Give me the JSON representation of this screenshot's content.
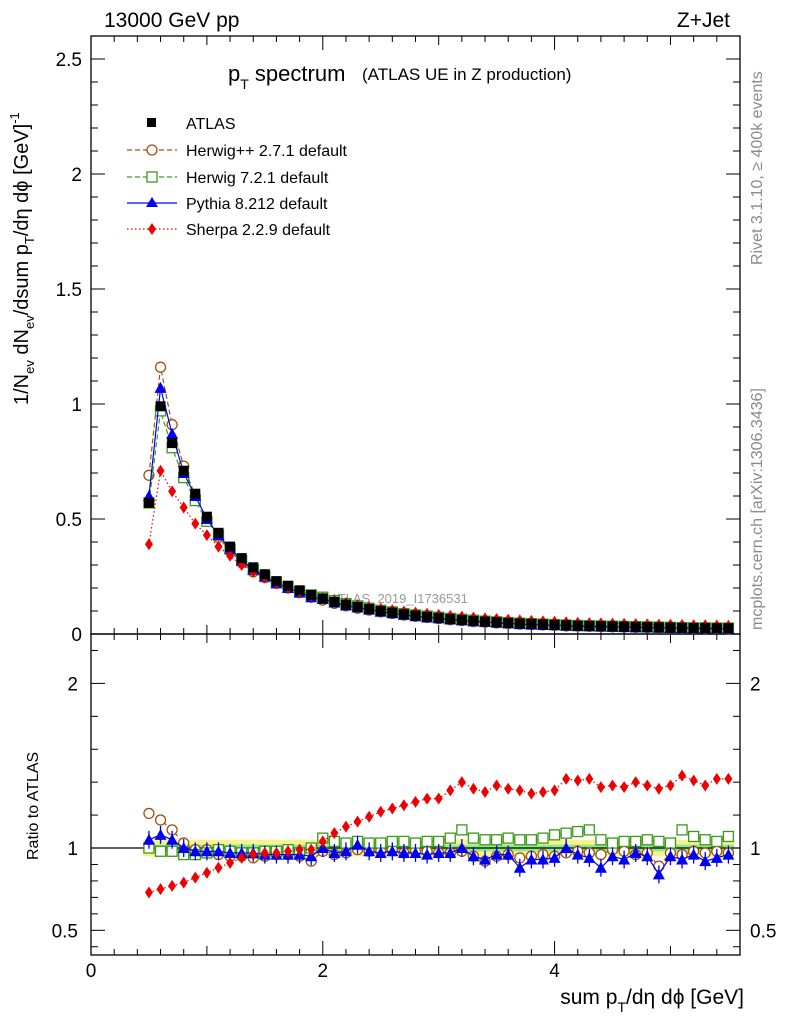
{
  "header": {
    "energy": "13000 GeV pp",
    "process": "Z+Jet"
  },
  "side_labels": {
    "rivet": "Rivet 3.1.10, ≥ 400k events",
    "mcplots": "mcplots.cern.ch [arXiv:1306.3436]"
  },
  "watermark": "ATLAS_2019_I1736531",
  "title": {
    "main_p": "p",
    "main_sub": "T",
    "main_rest": " spectrum",
    "note": "(ATLAS UE in Z production)"
  },
  "ylabel_top": "1/N_ev dN_ev/dsum p_T/dη dϕ [GeV]^-1",
  "ylabel_top_parts": {
    "a": "1/N",
    "a_sub": "ev",
    "b": " dN",
    "b_sub": "ev",
    "c": "/dsum p",
    "c_sub": "T",
    "d": "/dη dϕ  [GeV]",
    "d_sup": "-1"
  },
  "ylabel_ratio": "Ratio to ATLAS",
  "xlabel_parts": {
    "a": "sum p",
    "a_sub": "T",
    "b": "/dη dϕ [GeV]"
  },
  "legend": [
    {
      "label": "ATLAS",
      "color": "#000000",
      "marker": "square-filled",
      "line": "none"
    },
    {
      "label": "Herwig++ 2.7.1 default",
      "color": "#a0520f",
      "marker": "circle-open",
      "line": "dashed"
    },
    {
      "label": "Herwig 7.2.1 default",
      "color": "#3a9a1a",
      "marker": "square-open",
      "line": "dashed"
    },
    {
      "label": "Pythia 8.212 default",
      "color": "#0000ee",
      "marker": "triangle-filled",
      "line": "solid"
    },
    {
      "label": "Sherpa 2.2.9 default",
      "color": "#ee0000",
      "marker": "diamond-filled",
      "line": "dotted"
    }
  ],
  "chart_data": [
    {
      "type": "line",
      "panel": "main",
      "title": "pT spectrum (ATLAS UE in Z production)",
      "xlim": [
        0,
        5.6
      ],
      "ylim": [
        0,
        2.6
      ],
      "x_ticks": [
        0,
        2,
        4
      ],
      "y_ticks": [
        0,
        0.5,
        1,
        1.5,
        2,
        2.5
      ],
      "y_tick_labels": [
        "0",
        "0.5",
        "1",
        "1.5",
        "2",
        "2.5"
      ],
      "x": [
        0.5,
        0.6,
        0.7,
        0.8,
        0.9,
        1.0,
        1.1,
        1.2,
        1.3,
        1.4,
        1.5,
        1.6,
        1.7,
        1.8,
        1.9,
        2.0,
        2.1,
        2.2,
        2.3,
        2.4,
        2.5,
        2.6,
        2.7,
        2.8,
        2.9,
        3.0,
        3.1,
        3.2,
        3.3,
        3.4,
        3.5,
        3.6,
        3.7,
        3.8,
        3.9,
        4.0,
        4.1,
        4.2,
        4.3,
        4.4,
        4.5,
        4.6,
        4.7,
        4.8,
        4.9,
        5.0,
        5.1,
        5.2,
        5.3,
        5.4,
        5.5
      ],
      "series": [
        {
          "name": "ATLAS",
          "values": [
            0.57,
            0.99,
            0.83,
            0.71,
            0.61,
            0.51,
            0.44,
            0.38,
            0.33,
            0.29,
            0.26,
            0.23,
            0.21,
            0.19,
            0.17,
            0.155,
            0.14,
            0.128,
            0.118,
            0.109,
            0.1,
            0.093,
            0.086,
            0.08,
            0.075,
            0.07,
            0.065,
            0.061,
            0.057,
            0.054,
            0.051,
            0.048,
            0.046,
            0.044,
            0.042,
            0.04,
            0.038,
            0.036,
            0.035,
            0.034,
            0.033,
            0.032,
            0.031,
            0.03,
            0.029,
            0.028,
            0.027,
            0.026,
            0.026,
            0.025,
            0.025
          ]
        },
        {
          "name": "Herwig++ 2.7.1 default",
          "values": [
            0.69,
            1.16,
            0.91,
            0.73,
            0.6,
            0.5,
            0.42,
            0.36,
            0.31,
            0.27,
            0.245,
            0.22,
            0.2,
            0.18,
            0.16,
            0.147,
            0.133,
            0.122,
            0.112,
            0.104,
            0.096,
            0.089,
            0.082,
            0.077,
            0.072,
            0.067,
            0.062,
            0.058,
            0.054,
            0.051,
            0.048,
            0.045,
            0.043,
            0.041,
            0.039,
            0.037,
            0.035,
            0.034,
            0.033,
            0.032,
            0.031,
            0.03,
            0.029,
            0.028,
            0.027,
            0.026,
            0.025,
            0.025,
            0.024,
            0.024,
            0.023
          ]
        },
        {
          "name": "Herwig 7.2.1 default",
          "values": [
            0.57,
            0.97,
            0.81,
            0.68,
            0.58,
            0.49,
            0.43,
            0.37,
            0.32,
            0.28,
            0.25,
            0.225,
            0.205,
            0.185,
            0.17,
            0.16,
            0.145,
            0.132,
            0.122,
            0.112,
            0.103,
            0.096,
            0.089,
            0.083,
            0.078,
            0.073,
            0.068,
            0.064,
            0.06,
            0.056,
            0.053,
            0.05,
            0.047,
            0.045,
            0.043,
            0.041,
            0.039,
            0.037,
            0.036,
            0.035,
            0.034,
            0.033,
            0.032,
            0.031,
            0.03,
            0.029,
            0.028,
            0.027,
            0.027,
            0.026,
            0.026
          ]
        },
        {
          "name": "Pythia 8.212 default",
          "values": [
            0.6,
            1.07,
            0.87,
            0.7,
            0.6,
            0.5,
            0.43,
            0.37,
            0.32,
            0.28,
            0.25,
            0.22,
            0.2,
            0.18,
            0.16,
            0.152,
            0.137,
            0.124,
            0.115,
            0.106,
            0.097,
            0.09,
            0.083,
            0.077,
            0.072,
            0.068,
            0.063,
            0.059,
            0.055,
            0.052,
            0.049,
            0.046,
            0.043,
            0.041,
            0.039,
            0.038,
            0.036,
            0.034,
            0.033,
            0.032,
            0.031,
            0.03,
            0.029,
            0.028,
            0.027,
            0.026,
            0.025,
            0.025,
            0.024,
            0.024,
            0.023
          ]
        },
        {
          "name": "Sherpa 2.2.9 default",
          "values": [
            0.39,
            0.71,
            0.62,
            0.55,
            0.48,
            0.43,
            0.38,
            0.34,
            0.3,
            0.27,
            0.245,
            0.22,
            0.2,
            0.18,
            0.165,
            0.155,
            0.145,
            0.135,
            0.125,
            0.117,
            0.11,
            0.104,
            0.098,
            0.093,
            0.088,
            0.083,
            0.079,
            0.075,
            0.071,
            0.068,
            0.065,
            0.062,
            0.059,
            0.057,
            0.055,
            0.053,
            0.051,
            0.049,
            0.047,
            0.046,
            0.045,
            0.044,
            0.043,
            0.042,
            0.041,
            0.04,
            0.039,
            0.038,
            0.038,
            0.037,
            0.036
          ]
        }
      ]
    },
    {
      "type": "line",
      "panel": "ratio",
      "ylabel": "Ratio to ATLAS",
      "xlabel": "sum pT/dη dϕ [GeV]",
      "xlim": [
        0,
        5.6
      ],
      "ylim": [
        0.35,
        2.3
      ],
      "x_ticks": [
        0,
        2,
        4
      ],
      "x_tick_labels": [
        "0",
        "2",
        "4"
      ],
      "y_ticks": [
        0.5,
        1,
        2
      ],
      "y_tick_labels": [
        "0.5",
        "1",
        "2"
      ],
      "reference": 1,
      "band_inner": 0.02,
      "band_outer": 0.05,
      "x": [
        0.5,
        0.6,
        0.7,
        0.8,
        0.9,
        1.0,
        1.1,
        1.2,
        1.3,
        1.4,
        1.5,
        1.6,
        1.7,
        1.8,
        1.9,
        2.0,
        2.1,
        2.2,
        2.3,
        2.4,
        2.5,
        2.6,
        2.7,
        2.8,
        2.9,
        3.0,
        3.1,
        3.2,
        3.3,
        3.4,
        3.5,
        3.6,
        3.7,
        3.8,
        3.9,
        4.0,
        4.1,
        4.2,
        4.3,
        4.4,
        4.5,
        4.6,
        4.7,
        4.8,
        4.9,
        5.0,
        5.1,
        5.2,
        5.3,
        5.4,
        5.5
      ],
      "series": [
        {
          "name": "Herwig++ 2.7.1 default",
          "values": [
            1.21,
            1.17,
            1.11,
            1.03,
            0.99,
            0.99,
            0.96,
            0.95,
            0.95,
            0.94,
            0.95,
            0.96,
            0.96,
            0.95,
            0.92,
            0.98,
            0.96,
            0.97,
            0.99,
            0.98,
            0.98,
            0.99,
            0.97,
            0.98,
            0.98,
            0.97,
            0.97,
            0.98,
            0.95,
            0.92,
            0.95,
            0.96,
            0.94,
            0.95,
            0.96,
            0.95,
            0.97,
            0.98,
            0.97,
            0.96,
            0.99,
            0.98,
            0.96,
            0.97,
            0.89,
            0.97,
            0.96,
            0.98,
            0.97,
            0.98,
            0.97
          ]
        },
        {
          "name": "Herwig 7.2.1 default",
          "values": [
            1.0,
            0.98,
            0.98,
            0.96,
            0.96,
            0.97,
            0.99,
            0.98,
            0.97,
            0.97,
            0.98,
            0.98,
            0.99,
            0.97,
            1.0,
            1.06,
            1.04,
            1.03,
            1.04,
            1.03,
            1.03,
            1.04,
            1.04,
            1.03,
            1.04,
            1.04,
            1.06,
            1.11,
            1.06,
            1.05,
            1.05,
            1.06,
            1.05,
            1.05,
            1.06,
            1.08,
            1.09,
            1.1,
            1.11,
            1.05,
            1.03,
            1.04,
            1.04,
            1.05,
            1.04,
            1.03,
            1.11,
            1.07,
            1.05,
            1.04,
            1.07
          ]
        },
        {
          "name": "Pythia 8.212 default",
          "values": [
            1.05,
            1.08,
            1.05,
            1.0,
            0.98,
            0.98,
            0.98,
            0.97,
            0.97,
            0.97,
            0.96,
            0.96,
            0.96,
            0.96,
            0.95,
            1.0,
            0.97,
            0.98,
            1.02,
            0.98,
            0.97,
            0.98,
            0.97,
            0.97,
            0.96,
            0.97,
            0.97,
            1.0,
            0.95,
            0.93,
            0.96,
            0.96,
            0.88,
            0.93,
            0.93,
            0.94,
            1.0,
            0.96,
            0.94,
            0.88,
            0.95,
            0.93,
            0.97,
            0.95,
            0.84,
            0.95,
            0.93,
            0.96,
            0.92,
            0.94,
            0.96
          ]
        },
        {
          "name": "Sherpa 2.2.9 default",
          "values": [
            0.73,
            0.75,
            0.77,
            0.79,
            0.82,
            0.85,
            0.88,
            0.91,
            0.94,
            0.96,
            0.97,
            0.97,
            0.98,
            0.99,
            0.99,
            1.04,
            1.09,
            1.13,
            1.16,
            1.19,
            1.22,
            1.24,
            1.26,
            1.28,
            1.3,
            1.3,
            1.35,
            1.4,
            1.36,
            1.34,
            1.38,
            1.36,
            1.35,
            1.33,
            1.34,
            1.35,
            1.42,
            1.41,
            1.42,
            1.37,
            1.38,
            1.37,
            1.4,
            1.38,
            1.36,
            1.38,
            1.44,
            1.41,
            1.38,
            1.42,
            1.42
          ]
        }
      ]
    }
  ]
}
